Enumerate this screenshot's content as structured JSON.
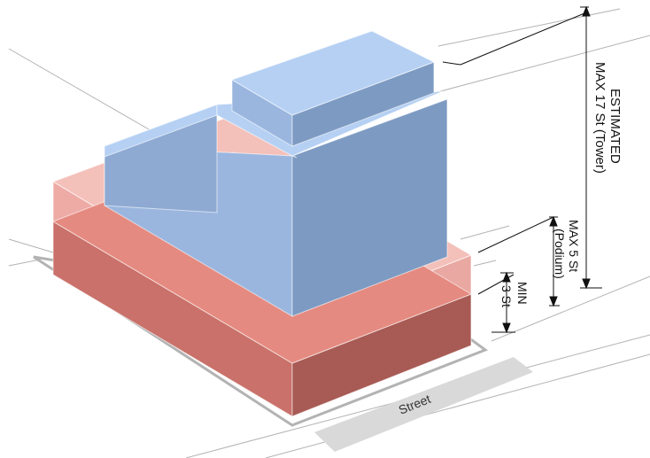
{
  "labels": {
    "street": "Street",
    "tower_line1": "ESTIMATED",
    "tower_line2": "MAX 17 St (Tower)",
    "podium_line1": "MAX 5 St",
    "podium_line2": "(Podium)",
    "min_line1": "MIN",
    "min_line2": "3 St"
  },
  "colors": {
    "tower_top": "#b5d0f3",
    "tower_left": "#9ab6df",
    "tower_front": "#7d9ac2",
    "podium_base_left": "#c9716a",
    "podium_base_front": "#a85a54",
    "podium_base_top": "#e58a80",
    "podium_upper_left": "#eeaaa5",
    "podium_upper_front": "#e9a8a2",
    "street_band": "#d9d9d9"
  }
}
